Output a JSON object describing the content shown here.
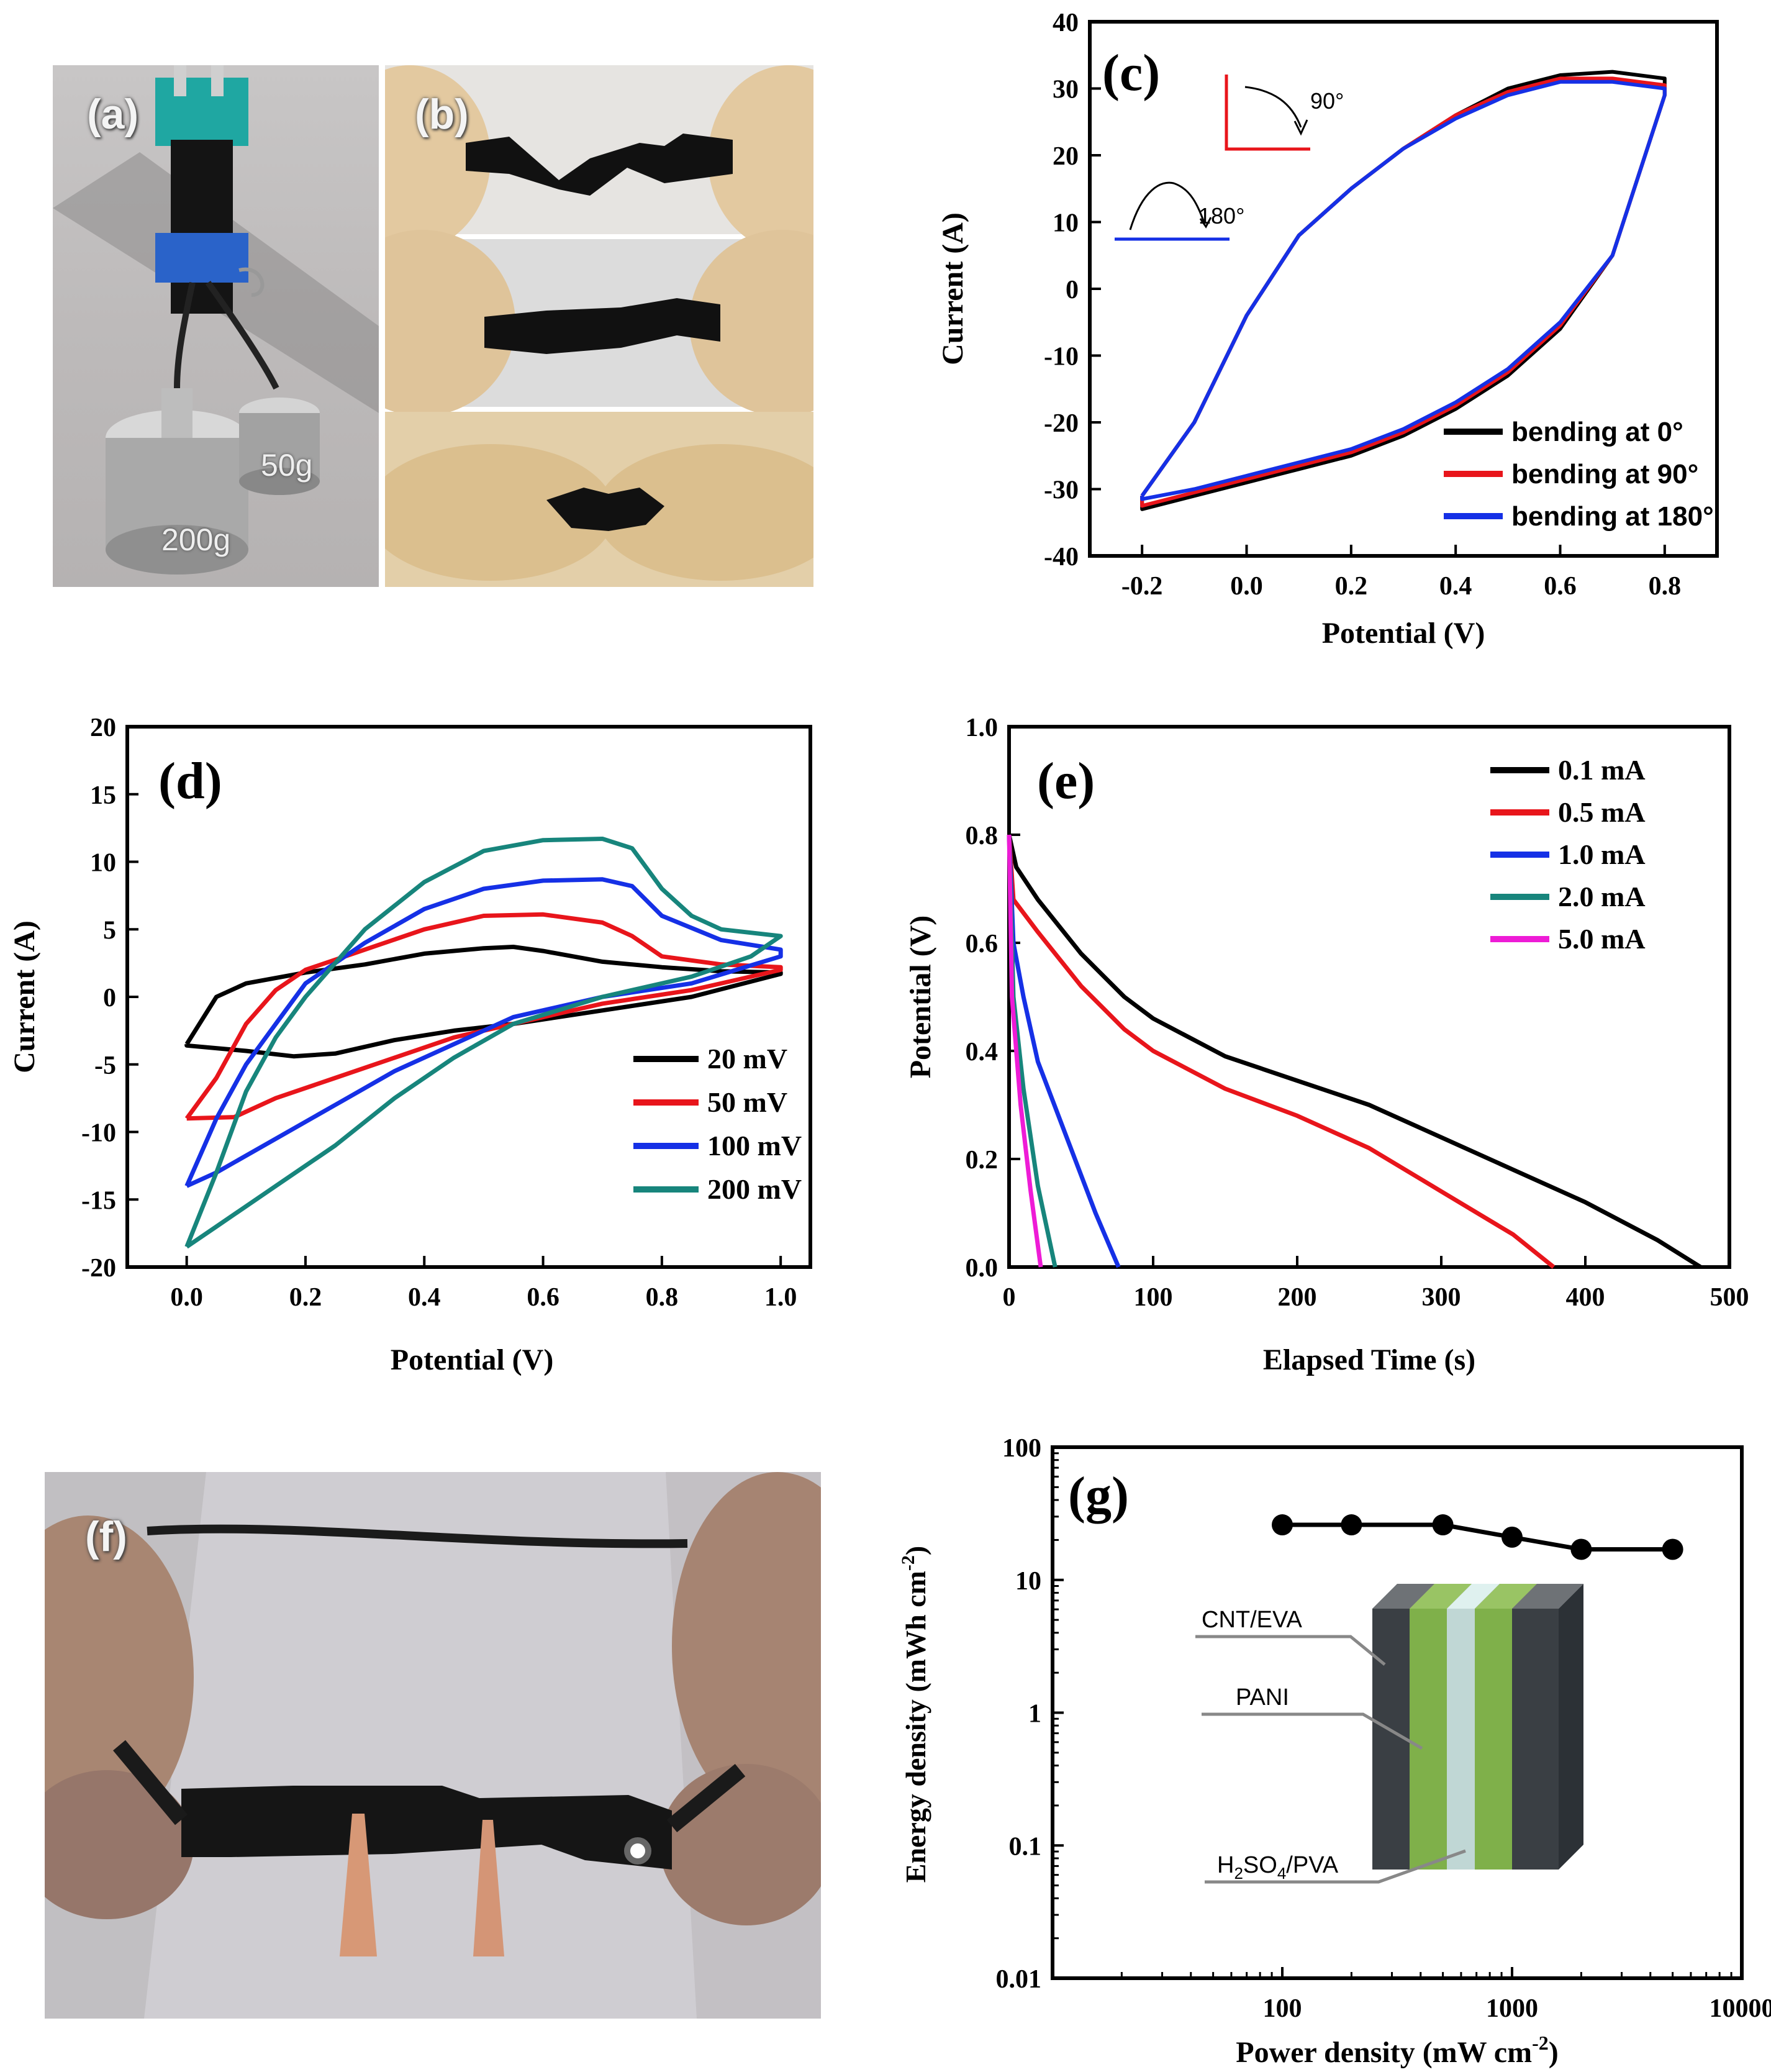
{
  "panels": {
    "a": {
      "label": "(a)",
      "weights": [
        "200g",
        "50g"
      ]
    },
    "b": {
      "label": "(b)"
    },
    "f": {
      "label": "(f)"
    },
    "g_inset": {
      "layers": [
        "CNT/EVA",
        "PANI",
        "H2SO4/PVA"
      ]
    }
  },
  "chart_data": [
    {
      "id": "c",
      "panel_label": "(c)",
      "type": "line",
      "xlabel": "Potential (V)",
      "ylabel": "Current (A)",
      "xlim": [
        -0.3,
        0.9
      ],
      "ylim": [
        -40,
        40
      ],
      "xticks": [
        -0.2,
        0.0,
        0.2,
        0.4,
        0.6,
        0.8
      ],
      "yticks": [
        -40,
        -30,
        -20,
        -10,
        0,
        10,
        20,
        30,
        40
      ],
      "inset_annotations": [
        "90°",
        "180°"
      ],
      "legend_position": "bottom-right",
      "series": [
        {
          "name": "bending at 0°",
          "color": "#000000",
          "upper": [
            [
              -0.2,
              -31
            ],
            [
              -0.1,
              -20
            ],
            [
              0.0,
              -4
            ],
            [
              0.1,
              8
            ],
            [
              0.2,
              15
            ],
            [
              0.3,
              21
            ],
            [
              0.4,
              26
            ],
            [
              0.5,
              30
            ],
            [
              0.6,
              32
            ],
            [
              0.7,
              32.5
            ],
            [
              0.8,
              31.5
            ]
          ],
          "lower": [
            [
              -0.2,
              -33
            ],
            [
              -0.1,
              -31
            ],
            [
              0.0,
              -29
            ],
            [
              0.1,
              -27
            ],
            [
              0.2,
              -25
            ],
            [
              0.3,
              -22
            ],
            [
              0.4,
              -18
            ],
            [
              0.5,
              -13
            ],
            [
              0.6,
              -6
            ],
            [
              0.7,
              5
            ],
            [
              0.8,
              29
            ]
          ]
        },
        {
          "name": "bending at 90°",
          "color": "#e8151b",
          "upper": [
            [
              -0.2,
              -31
            ],
            [
              -0.1,
              -20
            ],
            [
              0.0,
              -4
            ],
            [
              0.1,
              8
            ],
            [
              0.2,
              15
            ],
            [
              0.3,
              21
            ],
            [
              0.4,
              26
            ],
            [
              0.5,
              29.5
            ],
            [
              0.6,
              31.5
            ],
            [
              0.7,
              31.5
            ],
            [
              0.8,
              30.5
            ]
          ],
          "lower": [
            [
              -0.2,
              -32.5
            ],
            [
              -0.1,
              -30.5
            ],
            [
              0.0,
              -28.5
            ],
            [
              0.1,
              -26.5
            ],
            [
              0.2,
              -24.5
            ],
            [
              0.3,
              -21.5
            ],
            [
              0.4,
              -17.5
            ],
            [
              0.5,
              -12.5
            ],
            [
              0.6,
              -5.5
            ],
            [
              0.7,
              5
            ],
            [
              0.8,
              29
            ]
          ]
        },
        {
          "name": "bending at 180°",
          "color": "#1530e6",
          "upper": [
            [
              -0.2,
              -31
            ],
            [
              -0.1,
              -20
            ],
            [
              0.0,
              -4
            ],
            [
              0.1,
              8
            ],
            [
              0.2,
              15
            ],
            [
              0.3,
              21
            ],
            [
              0.4,
              25.5
            ],
            [
              0.5,
              29
            ],
            [
              0.6,
              31
            ],
            [
              0.7,
              31
            ],
            [
              0.8,
              30
            ]
          ],
          "lower": [
            [
              -0.2,
              -31.5
            ],
            [
              -0.1,
              -30
            ],
            [
              0.0,
              -28
            ],
            [
              0.1,
              -26
            ],
            [
              0.2,
              -24
            ],
            [
              0.3,
              -21
            ],
            [
              0.4,
              -17
            ],
            [
              0.5,
              -12
            ],
            [
              0.6,
              -5
            ],
            [
              0.7,
              5
            ],
            [
              0.8,
              29
            ]
          ]
        }
      ]
    },
    {
      "id": "d",
      "panel_label": "(d)",
      "type": "line",
      "xlabel": "Potential (V)",
      "ylabel": "Current (A)",
      "xlim": [
        -0.1,
        1.05
      ],
      "ylim": [
        -20,
        20
      ],
      "xticks": [
        0.0,
        0.2,
        0.4,
        0.6,
        0.8,
        1.0
      ],
      "yticks": [
        -20,
        -15,
        -10,
        -5,
        0,
        5,
        10,
        15,
        20
      ],
      "legend_position": "bottom-right",
      "series": [
        {
          "name": "20 mV",
          "color": "#000000",
          "upper": [
            [
              0.0,
              -3.5
            ],
            [
              0.05,
              0
            ],
            [
              0.1,
              1
            ],
            [
              0.2,
              1.8
            ],
            [
              0.3,
              2.4
            ],
            [
              0.4,
              3.2
            ],
            [
              0.5,
              3.6
            ],
            [
              0.55,
              3.7
            ],
            [
              0.6,
              3.4
            ],
            [
              0.7,
              2.6
            ],
            [
              0.8,
              2.2
            ],
            [
              0.9,
              1.9
            ],
            [
              1.0,
              1.8
            ]
          ],
          "lower": [
            [
              0.0,
              -3.6
            ],
            [
              0.1,
              -4
            ],
            [
              0.18,
              -4.4
            ],
            [
              0.25,
              -4.2
            ],
            [
              0.35,
              -3.2
            ],
            [
              0.45,
              -2.5
            ],
            [
              0.55,
              -2
            ],
            [
              0.7,
              -1
            ],
            [
              0.85,
              0
            ],
            [
              1.0,
              1.7
            ]
          ]
        },
        {
          "name": "50 mV",
          "color": "#e8151b",
          "upper": [
            [
              0.0,
              -9
            ],
            [
              0.05,
              -6
            ],
            [
              0.1,
              -2
            ],
            [
              0.15,
              0.5
            ],
            [
              0.2,
              2
            ],
            [
              0.3,
              3.5
            ],
            [
              0.4,
              5
            ],
            [
              0.5,
              6
            ],
            [
              0.6,
              6.1
            ],
            [
              0.7,
              5.5
            ],
            [
              0.75,
              4.5
            ],
            [
              0.8,
              3
            ],
            [
              0.9,
              2.4
            ],
            [
              1.0,
              2.2
            ]
          ],
          "lower": [
            [
              0.0,
              -9
            ],
            [
              0.08,
              -8.9
            ],
            [
              0.15,
              -7.5
            ],
            [
              0.25,
              -6
            ],
            [
              0.35,
              -4.5
            ],
            [
              0.45,
              -3
            ],
            [
              0.55,
              -2
            ],
            [
              0.7,
              -0.5
            ],
            [
              0.85,
              0.5
            ],
            [
              1.0,
              2
            ]
          ]
        },
        {
          "name": "100 mV",
          "color": "#1530e6",
          "upper": [
            [
              0.0,
              -14
            ],
            [
              0.05,
              -9
            ],
            [
              0.1,
              -5
            ],
            [
              0.15,
              -2
            ],
            [
              0.2,
              1
            ],
            [
              0.3,
              4
            ],
            [
              0.4,
              6.5
            ],
            [
              0.5,
              8
            ],
            [
              0.6,
              8.6
            ],
            [
              0.7,
              8.7
            ],
            [
              0.75,
              8.2
            ],
            [
              0.8,
              6
            ],
            [
              0.9,
              4.2
            ],
            [
              1.0,
              3.5
            ]
          ],
          "lower": [
            [
              0.0,
              -14
            ],
            [
              0.05,
              -13
            ],
            [
              0.15,
              -10.5
            ],
            [
              0.25,
              -8
            ],
            [
              0.35,
              -5.5
            ],
            [
              0.45,
              -3.5
            ],
            [
              0.55,
              -1.5
            ],
            [
              0.7,
              0
            ],
            [
              0.85,
              1
            ],
            [
              1.0,
              3
            ]
          ]
        },
        {
          "name": "200 mV",
          "color": "#17857c",
          "upper": [
            [
              0.0,
              -18.5
            ],
            [
              0.05,
              -13
            ],
            [
              0.1,
              -7
            ],
            [
              0.15,
              -3
            ],
            [
              0.2,
              0
            ],
            [
              0.3,
              5
            ],
            [
              0.4,
              8.5
            ],
            [
              0.5,
              10.8
            ],
            [
              0.6,
              11.6
            ],
            [
              0.7,
              11.7
            ],
            [
              0.75,
              11
            ],
            [
              0.8,
              8
            ],
            [
              0.85,
              6
            ],
            [
              0.9,
              5
            ],
            [
              1.0,
              4.5
            ]
          ],
          "lower": [
            [
              0.0,
              -18.5
            ],
            [
              0.05,
              -17
            ],
            [
              0.15,
              -14
            ],
            [
              0.25,
              -11
            ],
            [
              0.35,
              -7.5
            ],
            [
              0.45,
              -4.5
            ],
            [
              0.55,
              -2
            ],
            [
              0.7,
              0
            ],
            [
              0.85,
              1.5
            ],
            [
              0.95,
              3
            ],
            [
              1.0,
              4.5
            ]
          ]
        }
      ]
    },
    {
      "id": "e",
      "panel_label": "(e)",
      "type": "line",
      "xlabel": "Elapsed Time (s)",
      "ylabel": "Potential (V)",
      "xlim": [
        0,
        500
      ],
      "ylim": [
        0.0,
        1.0
      ],
      "xticks": [
        0,
        100,
        200,
        300,
        400,
        500
      ],
      "yticks": [
        0.0,
        0.2,
        0.4,
        0.6,
        0.8,
        1.0
      ],
      "legend_position": "top-right",
      "series": [
        {
          "name": "0.1 mA",
          "color": "#000000",
          "points": [
            [
              0,
              0.8
            ],
            [
              5,
              0.74
            ],
            [
              20,
              0.68
            ],
            [
              50,
              0.58
            ],
            [
              80,
              0.5
            ],
            [
              100,
              0.46
            ],
            [
              150,
              0.39
            ],
            [
              200,
              0.345
            ],
            [
              250,
              0.3
            ],
            [
              300,
              0.24
            ],
            [
              350,
              0.18
            ],
            [
              400,
              0.12
            ],
            [
              450,
              0.05
            ],
            [
              480,
              0.0
            ]
          ]
        },
        {
          "name": "0.5 mA",
          "color": "#e8151b",
          "points": [
            [
              0,
              0.8
            ],
            [
              3,
              0.68
            ],
            [
              20,
              0.62
            ],
            [
              50,
              0.52
            ],
            [
              80,
              0.44
            ],
            [
              100,
              0.4
            ],
            [
              150,
              0.33
            ],
            [
              200,
              0.28
            ],
            [
              250,
              0.22
            ],
            [
              300,
              0.14
            ],
            [
              350,
              0.06
            ],
            [
              378,
              0.0
            ]
          ]
        },
        {
          "name": "1.0 mA",
          "color": "#1530e6",
          "points": [
            [
              0,
              0.8
            ],
            [
              3,
              0.6
            ],
            [
              10,
              0.5
            ],
            [
              20,
              0.38
            ],
            [
              40,
              0.24
            ],
            [
              60,
              0.1
            ],
            [
              76,
              0.0
            ]
          ]
        },
        {
          "name": "2.0 mA",
          "color": "#17857c",
          "points": [
            [
              0,
              0.8
            ],
            [
              3,
              0.5
            ],
            [
              10,
              0.33
            ],
            [
              20,
              0.15
            ],
            [
              32,
              0.0
            ]
          ]
        },
        {
          "name": "5.0 mA",
          "color": "#ee1bd6",
          "points": [
            [
              0,
              0.8
            ],
            [
              2,
              0.5
            ],
            [
              8,
              0.3
            ],
            [
              15,
              0.14
            ],
            [
              22,
              0.0
            ]
          ]
        }
      ]
    },
    {
      "id": "g",
      "panel_label": "(g)",
      "type": "line",
      "xscale": "log",
      "yscale": "log",
      "xlabel": "Power density (mW cm-2)",
      "ylabel": "Energy density (mWh cm-2)",
      "xlim": [
        10,
        10000
      ],
      "ylim": [
        0.01,
        100
      ],
      "xticks": [
        100,
        1000,
        10000
      ],
      "xtick_labels": [
        "100",
        "1000",
        "10000"
      ],
      "yticks": [
        0.01,
        0.1,
        1,
        10,
        100
      ],
      "ytick_labels": [
        "0.01",
        "0.1",
        "1",
        "10",
        "100"
      ],
      "series": [
        {
          "color": "#000000",
          "points": [
            [
              100,
              26
            ],
            [
              200,
              26
            ],
            [
              500,
              26
            ],
            [
              1000,
              21
            ],
            [
              2000,
              17
            ],
            [
              5000,
              17
            ]
          ]
        }
      ]
    }
  ]
}
